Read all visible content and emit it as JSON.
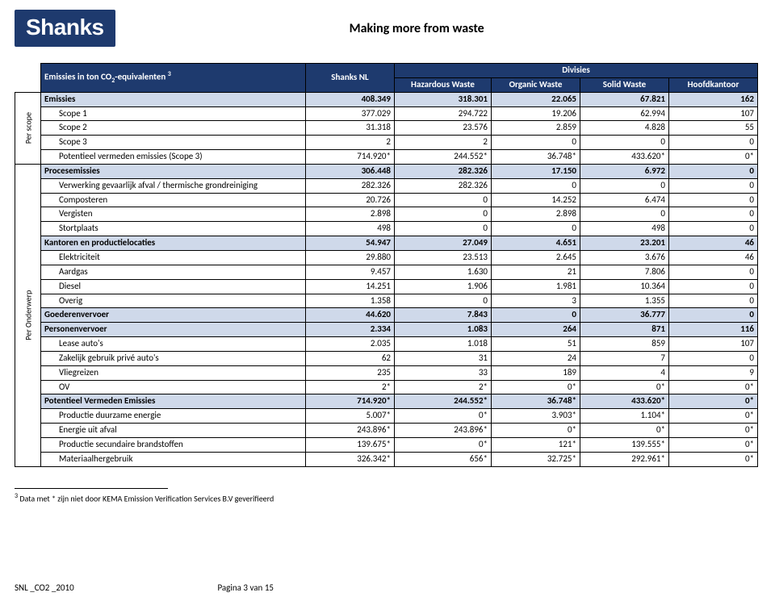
{
  "header": {
    "logo": "Shanks",
    "tagline": "Making more from waste"
  },
  "table": {
    "title_html": "Emissies in ton CO<sub>2</sub>-equivalenten <sup>3</sup>",
    "col_shanks": "Shanks NL",
    "col_divisies": "Divisies",
    "sub_h1": "Hazardous Waste",
    "sub_h2": "Organic Waste",
    "sub_h3": "Solid Waste",
    "sub_h4": "Hoofdkantoor",
    "vlabel_scope": "Per scope",
    "vlabel_subject": "Per Onderwerp",
    "rows": [
      {
        "k": "r0",
        "cls": "shade",
        "label": "Emissies",
        "v": [
          "408.349",
          "318.301",
          "22.065",
          "67.821",
          "162"
        ]
      },
      {
        "k": "r1",
        "indent": 1,
        "label": "Scope 1",
        "v": [
          "377.029",
          "294.722",
          "19.206",
          "62.994",
          "107"
        ]
      },
      {
        "k": "r2",
        "indent": 1,
        "label": "Scope 2",
        "v": [
          "31.318",
          "23.576",
          "2.859",
          "4.828",
          "55"
        ]
      },
      {
        "k": "r3",
        "indent": 1,
        "label": "Scope 3",
        "v": [
          "2",
          "2",
          "0",
          "0",
          "0"
        ]
      },
      {
        "k": "r4",
        "indent": 1,
        "label": "Potentieel vermeden emissies (Scope 3)",
        "v": [
          "714.920*",
          "244.552*",
          "36.748*",
          "433.620*",
          "0*"
        ]
      },
      {
        "k": "r5",
        "cls": "shade",
        "label": "Procesemissies",
        "v": [
          "306.448",
          "282.326",
          "17.150",
          "6.972",
          "0"
        ]
      },
      {
        "k": "r6",
        "indent": 1,
        "label": "Verwerking gevaarlijk afval / thermische grondreiniging",
        "v": [
          "282.326",
          "282.326",
          "0",
          "0",
          "0"
        ]
      },
      {
        "k": "r7",
        "indent": 1,
        "label": "Composteren",
        "v": [
          "20.726",
          "0",
          "14.252",
          "6.474",
          "0"
        ]
      },
      {
        "k": "r8",
        "indent": 1,
        "label": "Vergisten",
        "v": [
          "2.898",
          "0",
          "2.898",
          "0",
          "0"
        ]
      },
      {
        "k": "r9",
        "indent": 1,
        "label": "Stortplaats",
        "v": [
          "498",
          "0",
          "0",
          "498",
          "0"
        ]
      },
      {
        "k": "r10",
        "cls": "shade",
        "label": "Kantoren en productielocaties",
        "v": [
          "54.947",
          "27.049",
          "4.651",
          "23.201",
          "46"
        ]
      },
      {
        "k": "r11",
        "indent": 1,
        "label": "Elektriciteit",
        "v": [
          "29.880",
          "23.513",
          "2.645",
          "3.676",
          "46"
        ]
      },
      {
        "k": "r12",
        "indent": 1,
        "label": "Aardgas",
        "v": [
          "9.457",
          "1.630",
          "21",
          "7.806",
          "0"
        ]
      },
      {
        "k": "r13",
        "indent": 1,
        "label": "Diesel",
        "v": [
          "14.251",
          "1.906",
          "1.981",
          "10.364",
          "0"
        ]
      },
      {
        "k": "r14",
        "indent": 1,
        "label": "Overig",
        "v": [
          "1.358",
          "0",
          "3",
          "1.355",
          "0"
        ]
      },
      {
        "k": "r15",
        "cls": "shade",
        "label": "Goederenvervoer",
        "v": [
          "44.620",
          "7.843",
          "0",
          "36.777",
          "0"
        ]
      },
      {
        "k": "r16",
        "cls": "shade",
        "label": "Personenvervoer",
        "v": [
          "2.334",
          "1.083",
          "264",
          "871",
          "116"
        ]
      },
      {
        "k": "r17",
        "indent": 1,
        "label": "Lease auto's",
        "v": [
          "2.035",
          "1.018",
          "51",
          "859",
          "107"
        ]
      },
      {
        "k": "r18",
        "indent": 1,
        "label": "Zakelijk gebruik privé auto's",
        "v": [
          "62",
          "31",
          "24",
          "7",
          "0"
        ]
      },
      {
        "k": "r19",
        "indent": 1,
        "label": "Vliegreizen",
        "v": [
          "235",
          "33",
          "189",
          "4",
          "9"
        ]
      },
      {
        "k": "r20",
        "indent": 1,
        "label": "OV",
        "v": [
          "2*",
          "2*",
          "0*",
          "0*",
          "0*"
        ]
      },
      {
        "k": "r21",
        "cls": "shade",
        "label": "Potentieel Vermeden Emissies",
        "v": [
          "714.920*",
          "244.552*",
          "36.748*",
          "433.620*",
          "0*"
        ]
      },
      {
        "k": "r22",
        "indent": 1,
        "label": "Productie duurzame energie",
        "v": [
          "5.007*",
          "0*",
          "3.903*",
          "1.104*",
          "0*"
        ]
      },
      {
        "k": "r23",
        "indent": 1,
        "label": "Energie uit afval",
        "v": [
          "243.896*",
          "243.896*",
          "0*",
          "0*",
          "0*"
        ]
      },
      {
        "k": "r24",
        "indent": 1,
        "label": "Productie secundaire brandstoffen",
        "v": [
          "139.675*",
          "0*",
          "121*",
          "139.555*",
          "0*"
        ]
      },
      {
        "k": "r25",
        "indent": 1,
        "label": "Materiaalhergebruik",
        "v": [
          "326.342*",
          "656*",
          "32.725*",
          "292.961*",
          "0*"
        ]
      }
    ]
  },
  "footnote": "3 Data met * zijn niet door KEMA Emission Verification Services B.V geverifieerd",
  "footer": {
    "doc": "SNL _CO2 _2010",
    "page": "Pagina 3 van 15"
  },
  "colors": {
    "header_bg": "#1e3a6e",
    "shade_bg": "#cfd9ea",
    "text": "#000000",
    "header_text": "#ffffff",
    "border": "#000000"
  }
}
